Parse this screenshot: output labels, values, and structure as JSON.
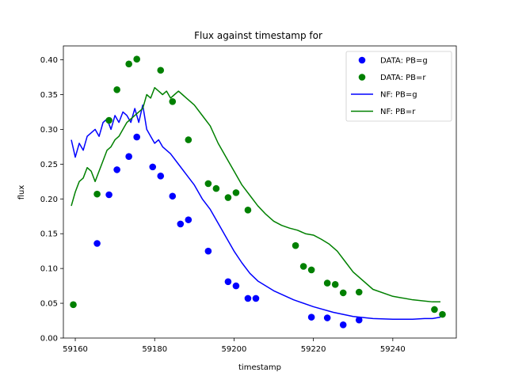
{
  "chart_data": {
    "type": "scatter",
    "title": "Flux against timestamp for",
    "xlabel": "timestamp",
    "ylabel": "flux",
    "xlim": [
      59157,
      59256
    ],
    "ylim": [
      0,
      0.42
    ],
    "xticks": [
      59160,
      59180,
      59200,
      59220,
      59240
    ],
    "yticks": [
      0.0,
      0.05,
      0.1,
      0.15,
      0.2,
      0.25,
      0.3,
      0.35,
      0.4
    ],
    "grid": false,
    "legend": {
      "position": "top-right",
      "entries": [
        "DATA: PB=g",
        "DATA: PB=r",
        "NF: PB=g",
        "NF: PB=r"
      ]
    },
    "colors": {
      "g": "#0000ff",
      "r": "#008000"
    },
    "points": [
      {
        "name": "DATA: PB=g",
        "color": "#0000ff",
        "x": [
          59165.5,
          59168.5,
          59170.5,
          59173.5,
          59175.5,
          59179.5,
          59181.5,
          59184.5,
          59186.5,
          59188.5,
          59193.5,
          59198.5,
          59200.5,
          59203.5,
          59205.5,
          59219.5,
          59223.5,
          59227.5,
          59231.5
        ],
        "y": [
          0.136,
          0.206,
          0.242,
          0.261,
          0.289,
          0.246,
          0.233,
          0.204,
          0.164,
          0.17,
          0.125,
          0.081,
          0.075,
          0.057,
          0.057,
          0.03,
          0.029,
          0.019,
          0.026
        ]
      },
      {
        "name": "DATA: PB=r",
        "color": "#008000",
        "x": [
          59159.5,
          59165.5,
          59168.5,
          59170.5,
          59173.5,
          59175.5,
          59181.5,
          59184.5,
          59188.5,
          59193.5,
          59195.5,
          59198.5,
          59200.5,
          59203.5,
          59215.5,
          59217.5,
          59219.5,
          59223.5,
          59225.5,
          59227.5,
          59231.5,
          59250.5,
          59252.5
        ],
        "y": [
          0.048,
          0.207,
          0.313,
          0.357,
          0.394,
          0.401,
          0.385,
          0.34,
          0.285,
          0.222,
          0.215,
          0.202,
          0.209,
          0.184,
          0.133,
          0.103,
          0.098,
          0.079,
          0.077,
          0.065,
          0.066,
          0.041,
          0.034
        ]
      }
    ],
    "series": [
      {
        "name": "NF: PB=g",
        "color": "#0000ff",
        "x": [
          59159,
          59160,
          59161,
          59162,
          59163,
          59164,
          59165,
          59166,
          59167,
          59168,
          59169,
          59170,
          59171,
          59172,
          59173,
          59174,
          59175,
          59176,
          59177,
          59178,
          59179,
          59180,
          59181,
          59182,
          59184,
          59186,
          59188,
          59190,
          59192,
          59194,
          59196,
          59198,
          59200,
          59202,
          59204,
          59206,
          59210,
          59215,
          59220,
          59225,
          59230,
          59235,
          59240,
          59245,
          59248,
          59250,
          59252
        ],
        "y": [
          0.285,
          0.26,
          0.28,
          0.27,
          0.29,
          0.295,
          0.3,
          0.29,
          0.31,
          0.315,
          0.3,
          0.32,
          0.31,
          0.325,
          0.32,
          0.31,
          0.33,
          0.31,
          0.335,
          0.3,
          0.29,
          0.28,
          0.285,
          0.275,
          0.265,
          0.25,
          0.235,
          0.22,
          0.2,
          0.185,
          0.165,
          0.145,
          0.125,
          0.108,
          0.093,
          0.082,
          0.068,
          0.055,
          0.045,
          0.037,
          0.031,
          0.028,
          0.027,
          0.027,
          0.028,
          0.028,
          0.03
        ]
      },
      {
        "name": "NF: PB=r",
        "color": "#008000",
        "x": [
          59159,
          59160,
          59161,
          59162,
          59163,
          59164,
          59165,
          59166,
          59167,
          59168,
          59169,
          59170,
          59171,
          59172,
          59173,
          59174,
          59175,
          59176,
          59177,
          59178,
          59179,
          59180,
          59181,
          59182,
          59183,
          59184,
          59185,
          59186,
          59187,
          59188,
          59190,
          59192,
          59194,
          59196,
          59198,
          59200,
          59202,
          59204,
          59206,
          59208,
          59210,
          59212,
          59214,
          59216,
          59218,
          59220,
          59222,
          59224,
          59226,
          59228,
          59230,
          59235,
          59240,
          59245,
          59250,
          59252
        ],
        "y": [
          0.19,
          0.21,
          0.225,
          0.23,
          0.245,
          0.24,
          0.225,
          0.24,
          0.255,
          0.27,
          0.275,
          0.285,
          0.29,
          0.3,
          0.31,
          0.315,
          0.32,
          0.325,
          0.33,
          0.35,
          0.345,
          0.36,
          0.355,
          0.35,
          0.355,
          0.345,
          0.35,
          0.355,
          0.35,
          0.345,
          0.335,
          0.32,
          0.305,
          0.28,
          0.26,
          0.24,
          0.22,
          0.205,
          0.19,
          0.178,
          0.168,
          0.162,
          0.158,
          0.155,
          0.15,
          0.148,
          0.142,
          0.135,
          0.125,
          0.11,
          0.095,
          0.07,
          0.06,
          0.055,
          0.052,
          0.052
        ]
      }
    ]
  }
}
